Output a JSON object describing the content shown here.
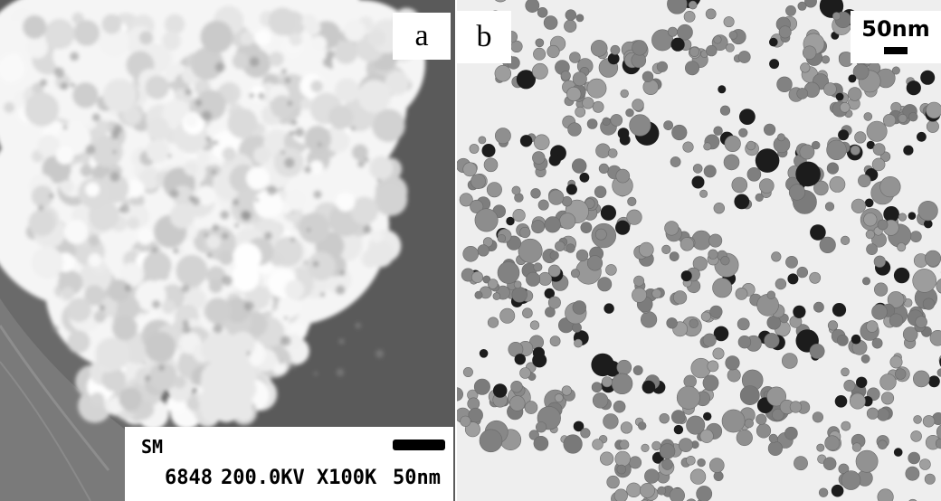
{
  "panel_a": {
    "label": "a",
    "micro_code": "SM",
    "image_number": "6848",
    "voltage": "200.0KV",
    "magnification": "X100K",
    "scale": "50nm"
  },
  "panel_b": {
    "label": "b",
    "scale": "50nm"
  },
  "colors": {
    "panel_a_background": "#555555",
    "panel_a_particles": "#f2f2f2",
    "panel_b_background": "#eeeeee",
    "panel_b_particles_light": "#8e8e8e",
    "panel_b_particles_dark": "#1a1a1a"
  }
}
